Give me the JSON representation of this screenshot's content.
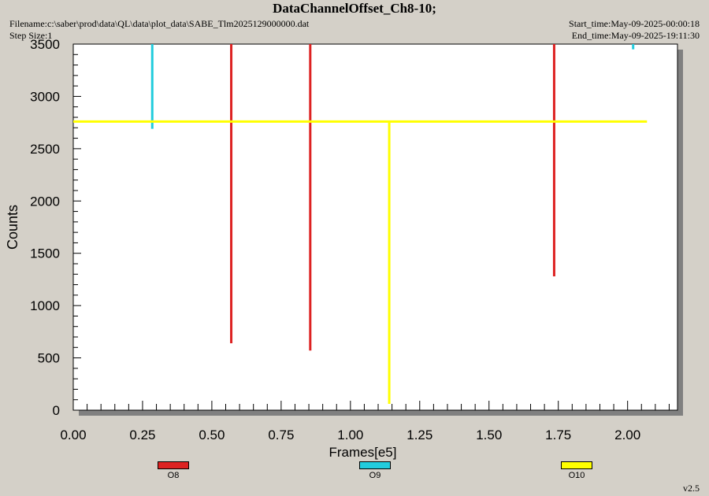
{
  "header": {
    "title": "DataChannelOffset_Ch8-10;",
    "filename": "Filename:c:\\saber\\prod\\data\\QL\\data\\plot_data\\SABE_Tlm2025129000000.dat",
    "step_size": "Step Size:1",
    "start_time": "Start_time:May-09-2025-00:00:18",
    "end_time": "End_time:May-09-2025-19:11:30"
  },
  "footer": {
    "version": "v2.5"
  },
  "colors": {
    "background": "#d4d0c8",
    "plot_bg": "#ffffff",
    "O8": "#dd2222",
    "O9": "#22ccdd",
    "O10": "#ffff00"
  },
  "chart_data": {
    "type": "line",
    "title": "DataChannelOffset_Ch8-10;",
    "xlabel": "Frames[e5]",
    "ylabel": "Counts",
    "xlim": [
      0,
      2.18
    ],
    "ylim": [
      0,
      3500
    ],
    "x_ticks": [
      "0.00",
      "0.25",
      "0.50",
      "0.75",
      "1.00",
      "1.25",
      "1.50",
      "1.75",
      "2.00"
    ],
    "y_ticks": [
      "0",
      "500",
      "1000",
      "1500",
      "2000",
      "2500",
      "3000",
      "3500"
    ],
    "x_tick_values": [
      0,
      0.25,
      0.5,
      0.75,
      1.0,
      1.25,
      1.5,
      1.75,
      2.0
    ],
    "y_tick_values": [
      0,
      500,
      1000,
      1500,
      2000,
      2500,
      3000,
      3500
    ],
    "legend_position": "bottom",
    "series": [
      {
        "name": "O8",
        "color": "#dd2222",
        "segments": [
          {
            "x": [
              0.57,
              0.57
            ],
            "y": [
              3500,
              640
            ]
          },
          {
            "x": [
              0.855,
              0.855
            ],
            "y": [
              3500,
              570
            ]
          },
          {
            "x": [
              1.735,
              1.735
            ],
            "y": [
              3500,
              1280
            ]
          }
        ]
      },
      {
        "name": "O9",
        "color": "#22ccdd",
        "segments": [
          {
            "x": [
              0.285,
              0.285
            ],
            "y": [
              3500,
              2690
            ]
          },
          {
            "x": [
              2.02,
              2.02
            ],
            "y": [
              3500,
              3450
            ]
          }
        ]
      },
      {
        "name": "O10",
        "color": "#ffff00",
        "segments": [
          {
            "x": [
              0.0,
              2.07
            ],
            "y": [
              2760,
              2760
            ]
          },
          {
            "x": [
              1.14,
              1.14
            ],
            "y": [
              2760,
              60
            ]
          }
        ]
      }
    ]
  }
}
